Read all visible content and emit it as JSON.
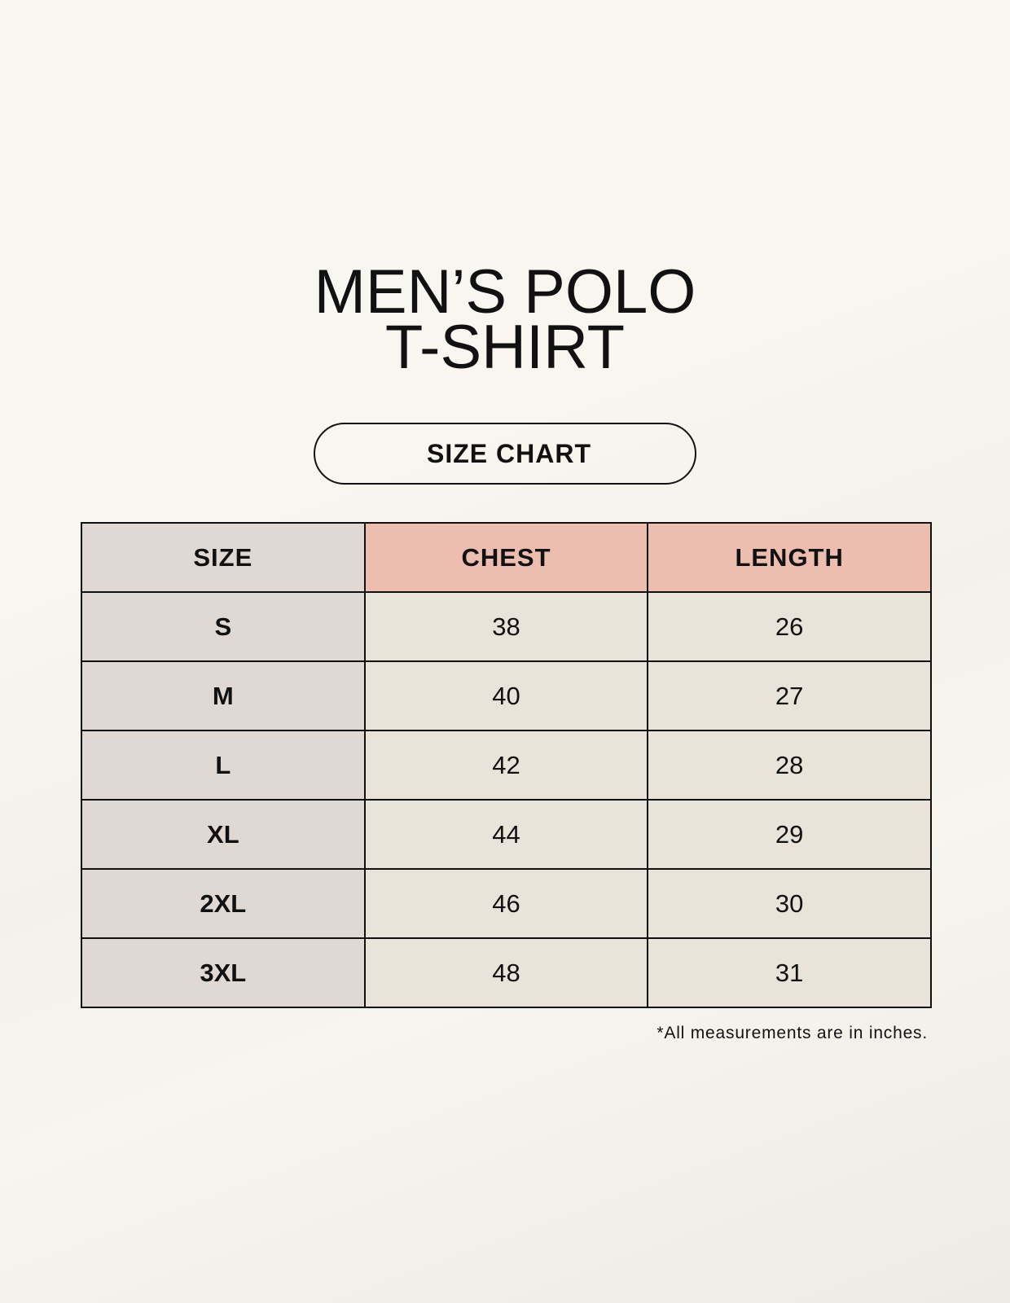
{
  "title": {
    "line1": "MEN’S POLO",
    "line2": "T-SHIRT"
  },
  "badge": "SIZE CHART",
  "table": {
    "headers": [
      "SIZE",
      "CHEST",
      "LENGTH"
    ],
    "rows": [
      [
        "S",
        "38",
        "26"
      ],
      [
        "M",
        "40",
        "27"
      ],
      [
        "L",
        "42",
        "28"
      ],
      [
        "XL",
        "44",
        "29"
      ],
      [
        "2XL",
        "46",
        "30"
      ],
      [
        "3XL",
        "48",
        "31"
      ]
    ]
  },
  "footnote": "*All measurements are in inches.",
  "colors": {
    "size_column": "#e0d9d3",
    "header_accent": "#edbdb0",
    "cell": "#eae3d9"
  }
}
